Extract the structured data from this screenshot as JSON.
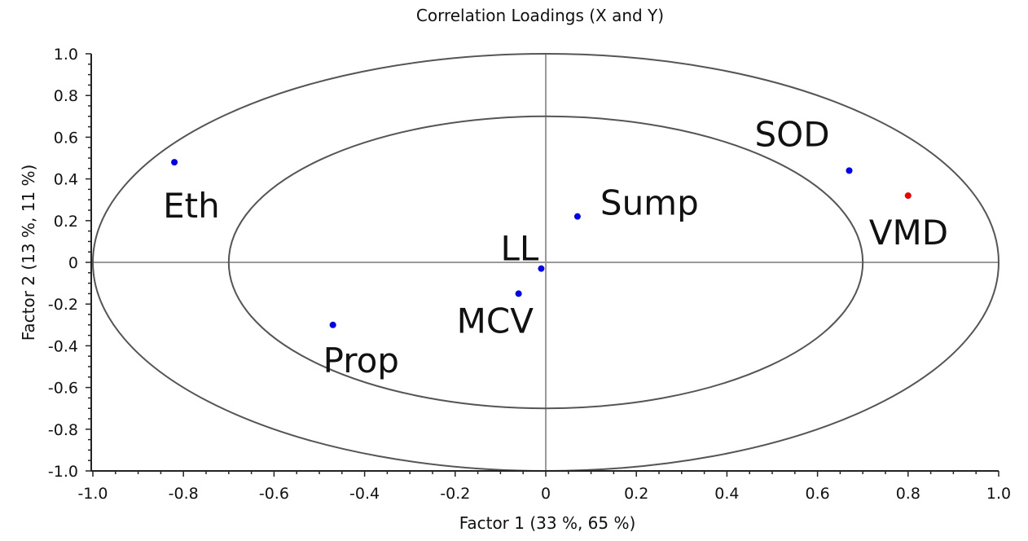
{
  "chart_data": {
    "type": "scatter",
    "title": "Correlation Loadings (X and Y)",
    "xlabel": "Factor 1 (33 %, 65 %)",
    "ylabel": "Factor 2 (13 %, 11 %)",
    "xlim": [
      -1.0,
      1.0
    ],
    "ylim": [
      -1.0,
      1.0
    ],
    "x_ticks": [
      "-1.0",
      "-0.8",
      "-0.6",
      "-0.4",
      "-0.2",
      "0",
      "0.2",
      "0.4",
      "0.6",
      "0.8",
      "1.0"
    ],
    "y_ticks": [
      "1.0",
      "0.8",
      "0.6",
      "0.4",
      "0.2",
      "0",
      "-0.2",
      "-0.4",
      "-0.6",
      "-0.8",
      "-1.0"
    ],
    "ellipses": [
      {
        "radius": 1.0
      },
      {
        "radius": 0.7
      }
    ],
    "points": [
      {
        "label": "Eth",
        "x": -0.82,
        "y": 0.48,
        "color": "#0000ee"
      },
      {
        "label": "Sump",
        "x": 0.07,
        "y": 0.22,
        "color": "#0000ee"
      },
      {
        "label": "SOD",
        "x": 0.67,
        "y": 0.44,
        "color": "#0000ee"
      },
      {
        "label": "VMD",
        "x": 0.8,
        "y": 0.32,
        "color": "#ee0000"
      },
      {
        "label": "LL",
        "x": -0.01,
        "y": -0.03,
        "color": "#0000ee"
      },
      {
        "label": "MCV",
        "x": -0.06,
        "y": -0.15,
        "color": "#0000ee"
      },
      {
        "label": "Prop",
        "x": -0.47,
        "y": -0.3,
        "color": "#0000ee"
      }
    ],
    "grid": false
  }
}
